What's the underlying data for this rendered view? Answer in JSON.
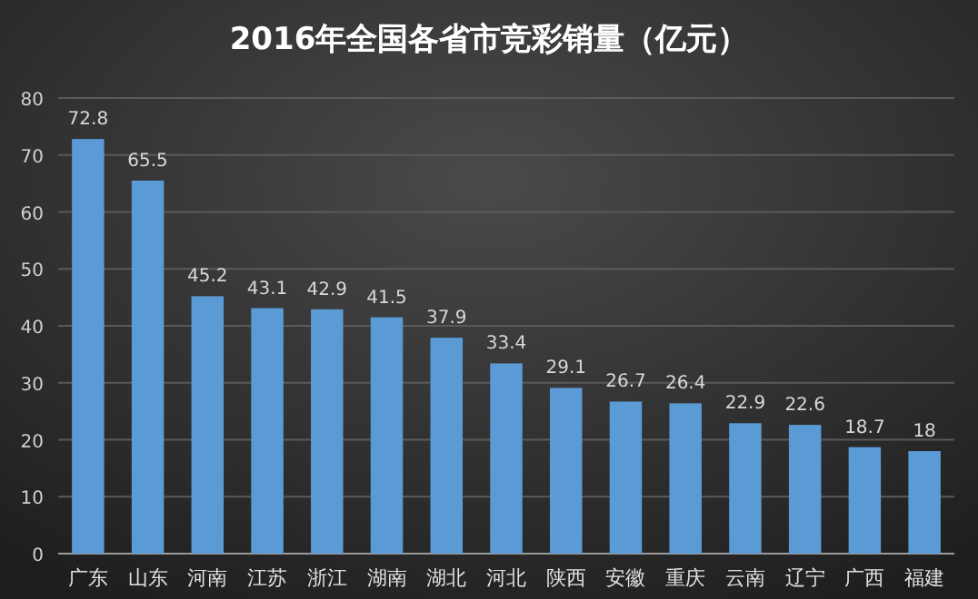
{
  "chart_data": {
    "type": "bar",
    "title": "2016年全国各省市竞彩销量（亿元）",
    "categories": [
      "广东",
      "山东",
      "河南",
      "江苏",
      "浙江",
      "湖南",
      "湖北",
      "河北",
      "陕西",
      "安徽",
      "重庆",
      "云南",
      "辽宁",
      "广西",
      "福建"
    ],
    "values": [
      72.8,
      65.5,
      45.2,
      43.1,
      42.9,
      41.5,
      37.9,
      33.4,
      29.1,
      26.7,
      26.4,
      22.9,
      22.6,
      18.7,
      18
    ],
    "color": "#5b9bd5",
    "ylim": [
      0,
      80
    ],
    "yticks": [
      0,
      10,
      20,
      30,
      40,
      50,
      60,
      70,
      80
    ],
    "grid": "y",
    "data_labels": true
  }
}
